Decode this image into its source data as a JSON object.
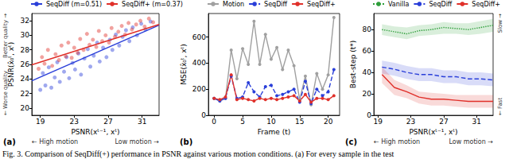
{
  "caption": "Fig. 3. Comparison of SeqDiff(+) performance in PSNR against various motion conditions. (a) For every sample in the test",
  "chart_data": [
    {
      "type": "scatter",
      "title": "(a)",
      "x_label": "PSNR(xᵗ⁻¹, xᵗ)",
      "y_label": "PSNR(x̂₀ᵗ, xᵗ)",
      "annotations": {
        "x_left": "← High motion",
        "x_right": "Low motion →",
        "y_bottom": "← Worse quality",
        "y_top": "Better quality →"
      },
      "xlim": [
        18,
        33
      ],
      "xticks": [
        19,
        23,
        27,
        31
      ],
      "ylim": [
        19,
        33
      ],
      "yticks": [
        20,
        22,
        24,
        26,
        28,
        30,
        32
      ],
      "grid": false,
      "legend": "top",
      "series": [
        {
          "name": "SeqDiff (m=0.51)",
          "color": "#2a3fd9",
          "marker": "circle",
          "x": [
            19.0,
            19.3,
            19.6,
            20.0,
            20.3,
            20.7,
            21.0,
            21.3,
            21.8,
            22.1,
            22.4,
            22.8,
            23.1,
            23.5,
            23.8,
            24.2,
            24.6,
            24.9,
            25.3,
            25.7,
            26.0,
            26.4,
            26.8,
            27.2,
            27.5,
            27.9,
            28.3,
            28.7,
            29.1,
            29.5,
            29.9,
            30.4,
            30.9,
            31.4,
            32.0
          ],
          "y": [
            22.5,
            24.8,
            23.1,
            25.6,
            22.8,
            24.2,
            26.3,
            23.6,
            25.0,
            27.0,
            24.1,
            26.2,
            25.3,
            27.5,
            24.6,
            26.8,
            28.1,
            25.7,
            27.2,
            29.0,
            26.4,
            28.3,
            27.0,
            29.4,
            28.0,
            30.1,
            28.6,
            29.8,
            30.7,
            29.2,
            31.1,
            30.0,
            31.6,
            30.8,
            31.9
          ],
          "fit_x": [
            18,
            33
          ],
          "fit_y": [
            23.75,
            31.4
          ]
        },
        {
          "name": "SeqDiff+ (m=0.37)",
          "color": "#e0302a",
          "marker": "circle",
          "x": [
            18.8,
            19.2,
            19.5,
            19.9,
            20.4,
            20.8,
            21.2,
            21.5,
            22.0,
            22.3,
            22.7,
            23.0,
            23.4,
            23.7,
            24.1,
            24.5,
            24.8,
            25.2,
            25.6,
            25.9,
            26.3,
            26.7,
            27.1,
            27.4,
            27.8,
            28.2,
            28.6,
            29.0,
            29.4,
            29.8,
            30.3,
            30.8,
            31.3,
            31.8,
            32.3
          ],
          "y": [
            25.4,
            27.0,
            26.1,
            28.0,
            25.8,
            27.4,
            26.6,
            28.6,
            27.1,
            29.0,
            26.9,
            28.3,
            27.6,
            29.5,
            28.0,
            30.2,
            28.7,
            29.4,
            28.4,
            30.6,
            29.2,
            30.0,
            29.0,
            31.0,
            29.8,
            30.5,
            31.3,
            30.1,
            31.7,
            30.8,
            31.5,
            32.0,
            31.2,
            32.3,
            31.8
          ],
          "fit_x": [
            18,
            33
          ],
          "fit_y": [
            25.95,
            31.5
          ]
        }
      ]
    },
    {
      "type": "line",
      "title": "(b)",
      "x_label": "Frame (t)",
      "y_label": "MSE(x̂₀ᵗ, xᵗ)",
      "x": [
        0,
        1,
        2,
        3,
        4,
        5,
        6,
        7,
        8,
        9,
        10,
        11,
        12,
        13,
        14,
        15,
        16,
        17,
        18,
        19,
        20,
        21
      ],
      "xlim": [
        -1,
        22
      ],
      "xticks": [
        0,
        5,
        10,
        15,
        20
      ],
      "ylim": [
        0,
        780
      ],
      "yticks": [
        0,
        200,
        400,
        600
      ],
      "grid": false,
      "legend": "top",
      "series": [
        {
          "name": "Motion",
          "color": "#a0a0a0",
          "marker": "circle",
          "line_style": "solid",
          "values": [
            130,
            110,
            130,
            500,
            280,
            510,
            390,
            720,
            390,
            620,
            430,
            520,
            350,
            500,
            380,
            120,
            300,
            80,
            320,
            200,
            310,
            750
          ]
        },
        {
          "name": "SeqDiff",
          "color": "#2a3fd9",
          "marker": "circle",
          "line_style": "dashed",
          "values": [
            130,
            110,
            130,
            300,
            130,
            140,
            250,
            180,
            140,
            220,
            230,
            150,
            160,
            180,
            200,
            100,
            260,
            90,
            200,
            150,
            180,
            350
          ]
        },
        {
          "name": "SeqDiff+",
          "color": "#e0302a",
          "marker": "circle",
          "line_style": "solid",
          "values": [
            130,
            120,
            140,
            310,
            120,
            130,
            120,
            110,
            130,
            120,
            130,
            120,
            130,
            140,
            150,
            110,
            160,
            100,
            130,
            130,
            120,
            150
          ]
        }
      ]
    },
    {
      "type": "line",
      "title": "(c)",
      "x_label": "PSNR(xᵗ⁻¹, xᵗ)",
      "y_label": "Best-step (t*)",
      "annotations": {
        "x_left": "← High motion",
        "x_right": "Low motion →",
        "y_bottom": "← Fast",
        "y_top": "Slow →"
      },
      "x": [
        19.5,
        21,
        22.5,
        24,
        25.5,
        27,
        28.5,
        30,
        31.5,
        33
      ],
      "xlim": [
        18.5,
        33
      ],
      "xticks": [
        19,
        23,
        27,
        31
      ],
      "ylim": [
        0,
        95
      ],
      "yticks": [
        0,
        20,
        40,
        60,
        80
      ],
      "grid": false,
      "legend": "top",
      "series": [
        {
          "name": "Vanilla",
          "color": "#2e9e3a",
          "marker": "none",
          "line_style": "dotted",
          "values": [
            80,
            78,
            76,
            79,
            80,
            82,
            81,
            80,
            82,
            84
          ],
          "band_lower": [
            75,
            73,
            71,
            74,
            75,
            76,
            76,
            75,
            76,
            78
          ],
          "band_upper": [
            85,
            83,
            82,
            84,
            85,
            87,
            86,
            86,
            88,
            90
          ]
        },
        {
          "name": "SeqDiff",
          "color": "#2a3fd9",
          "marker": "none",
          "line_style": "dashed",
          "values": [
            45,
            43,
            40,
            38,
            38,
            36,
            36,
            34,
            34,
            33
          ],
          "band_lower": [
            39,
            37,
            34,
            32,
            32,
            30,
            30,
            28,
            28,
            27
          ],
          "band_upper": [
            51,
            49,
            46,
            44,
            44,
            42,
            42,
            40,
            40,
            39
          ]
        },
        {
          "name": "SeqDiff+",
          "color": "#e0302a",
          "marker": "none",
          "line_style": "solid",
          "values": [
            38,
            26,
            22,
            17,
            15,
            15,
            14,
            13,
            13,
            13
          ],
          "band_lower": [
            30,
            19,
            16,
            11,
            9,
            9,
            8,
            7,
            7,
            7
          ],
          "band_upper": [
            45,
            33,
            28,
            22,
            21,
            20,
            19,
            19,
            19,
            19
          ]
        }
      ]
    }
  ]
}
